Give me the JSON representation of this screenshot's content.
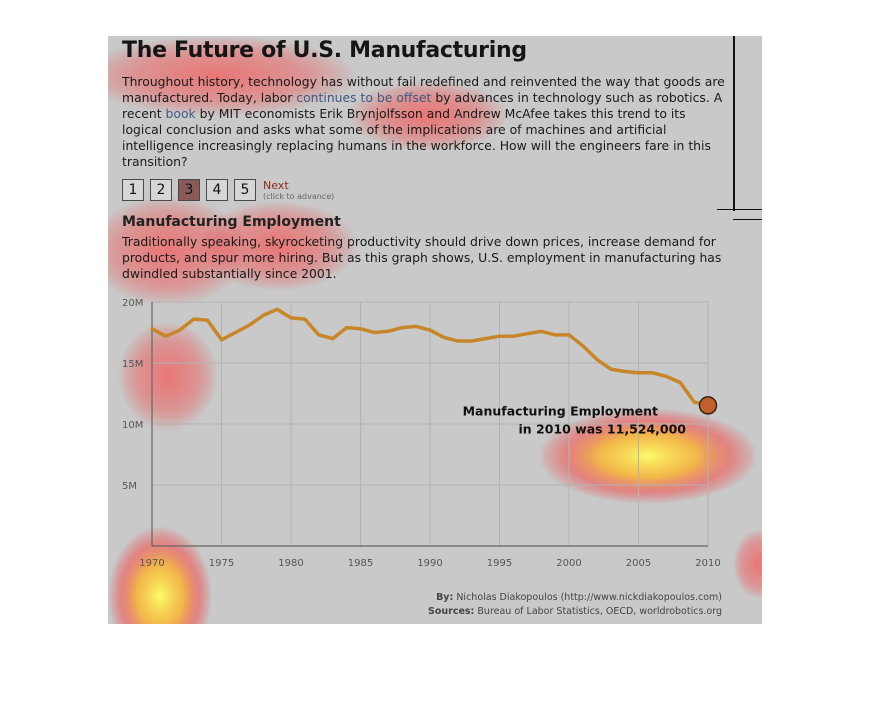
{
  "title": "The Future of U.S. Manufacturing",
  "intro": {
    "part1": "Throughout history, technology has without fail redefined and reinvented the way that goods are manufactured. Today, labor ",
    "link1": "continues to be offset",
    "part2": " by advances in technology such as robotics. A recent ",
    "link2": "book",
    "part3": " by MIT economists Erik Brynjolfsson and Andrew McAfee takes this trend to its logical conclusion and asks what some of the implications are of machines and artificial intelligence increasingly replacing humans in the workforce. How will the engineers fare in this transition?"
  },
  "pager": {
    "pages": [
      "1",
      "2",
      "3",
      "4",
      "5"
    ],
    "active": "3",
    "next_label": "Next",
    "next_hint": "(click to advance)"
  },
  "section": {
    "title": "Manufacturing Employment",
    "text": "Traditionally speaking, skyrocketing productivity should drive down prices, increase demand for products, and spur more hiring. But as this graph shows, U.S. employment in manufacturing has dwindled substantially since 2001."
  },
  "chart_data": {
    "type": "line",
    "title": "",
    "xlabel": "",
    "ylabel": "",
    "xlim": [
      1970,
      2010
    ],
    "ylim": [
      0,
      20000000
    ],
    "x_ticks": [
      "1970",
      "1975",
      "1980",
      "1985",
      "1990",
      "1995",
      "2000",
      "2005",
      "2010"
    ],
    "y_ticks": [
      "5M",
      "10M",
      "15M",
      "20M"
    ],
    "grid": true,
    "line_color": "#c8862a",
    "marker_color": "#c0602a",
    "series": [
      {
        "name": "",
        "x": [
          1970,
          1971,
          1972,
          1973,
          1974,
          1975,
          1976,
          1977,
          1978,
          1979,
          1980,
          1981,
          1982,
          1983,
          1984,
          1985,
          1986,
          1987,
          1988,
          1989,
          1990,
          1991,
          1992,
          1993,
          1994,
          1995,
          1996,
          1997,
          1998,
          1999,
          2000,
          2001,
          2002,
          2003,
          2004,
          2005,
          2006,
          2007,
          2008,
          2009,
          2010
        ],
        "y": [
          17800000,
          17200000,
          17700000,
          18600000,
          18500000,
          16900000,
          17500000,
          18100000,
          18900000,
          19400000,
          18700000,
          18600000,
          17300000,
          17000000,
          17900000,
          17800000,
          17500000,
          17600000,
          17900000,
          18000000,
          17700000,
          17100000,
          16800000,
          16800000,
          17000000,
          17200000,
          17200000,
          17400000,
          17600000,
          17300000,
          17300000,
          16400000,
          15300000,
          14500000,
          14300000,
          14200000,
          14200000,
          13900000,
          13400000,
          11800000,
          11524000
        ]
      }
    ],
    "annotation": {
      "line1": "Manufacturing Employment",
      "line2": "in 2010 was 11,524,000"
    }
  },
  "byline": {
    "by_label": "By:",
    "by_text": "Nicholas Diakopoulos (http://www.nickdiakopoulos.com)",
    "sources_label": "Sources:",
    "sources_text": "Bureau of Labor Statistics, OECD, worldrobotics.org"
  }
}
